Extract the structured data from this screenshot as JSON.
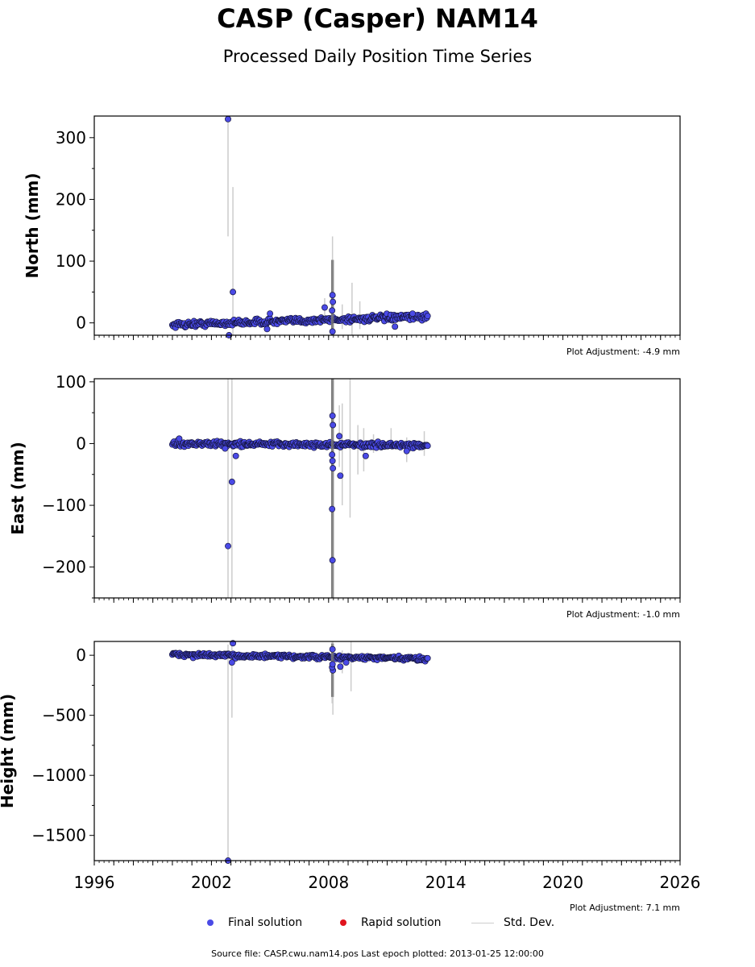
{
  "title": "CASP (Casper) NAM14",
  "subtitle": "Processed Daily Position Time Series",
  "source": "Source file: CASP.cwu.nam14.pos  Last epoch plotted: 2013-01-25 12:00:00",
  "colors": {
    "final": "#4a4ae6",
    "final_edge": "#14143c",
    "rapid": "#e0141e",
    "stddev": "#cccccc"
  },
  "legend": {
    "final": "Final solution",
    "rapid": "Rapid solution",
    "stddev": "Std. Dev."
  },
  "chart_data": [
    {
      "type": "scatter",
      "ylabel": "North (mm)",
      "adjustment": "Plot Adjustment: -4.9 mm",
      "xlim": [
        1996,
        2026
      ],
      "ylim": [
        -20,
        335
      ],
      "yticks": [
        0,
        100,
        200,
        300
      ],
      "xtick_labels": [],
      "trend": {
        "x": [
          2000.0,
          2013.07
        ],
        "y": [
          -3,
          10
        ],
        "noise": 3.5
      },
      "outliers": [
        {
          "x": 2002.85,
          "y": 330,
          "err": 190
        },
        {
          "x": 2002.9,
          "y": -20,
          "err": 0
        },
        {
          "x": 2003.1,
          "y": 50,
          "err": 170
        },
        {
          "x": 2007.8,
          "y": 25,
          "err": 15
        },
        {
          "x": 2008.2,
          "y": 45,
          "err": 95
        },
        {
          "x": 2008.22,
          "y": 34,
          "err": 50
        },
        {
          "x": 2008.18,
          "y": 20,
          "err": 40
        },
        {
          "x": 2008.2,
          "y": -14,
          "err": 30
        },
        {
          "x": 2004.85,
          "y": -10,
          "err": 0
        },
        {
          "x": 2005.0,
          "y": 15,
          "err": 0
        },
        {
          "x": 2011.4,
          "y": -6,
          "err": 0
        },
        {
          "x": 2012.3,
          "y": 15,
          "err": 0
        }
      ],
      "error_bars": [
        {
          "x": 2009.2,
          "lo": -20,
          "hi": 65
        },
        {
          "x": 2009.6,
          "lo": -10,
          "hi": 35
        },
        {
          "x": 2008.7,
          "lo": -10,
          "hi": 30
        }
      ]
    },
    {
      "type": "scatter",
      "ylabel": "East (mm)",
      "adjustment": "Plot Adjustment: -1.0 mm",
      "xlim": [
        1996,
        2026
      ],
      "ylim": [
        -250,
        105
      ],
      "yticks": [
        -200,
        -100,
        0,
        100
      ],
      "xtick_labels": [],
      "trend": {
        "x": [
          2000.0,
          2013.07
        ],
        "y": [
          0,
          -3
        ],
        "noise": 3
      },
      "outliers": [
        {
          "x": 2000.35,
          "y": 8,
          "err": 0
        },
        {
          "x": 2002.85,
          "y": -166,
          "err": 300
        },
        {
          "x": 2003.05,
          "y": -62,
          "err": 200
        },
        {
          "x": 2003.25,
          "y": -20,
          "err": 0
        },
        {
          "x": 2002.7,
          "y": -8,
          "err": 0
        },
        {
          "x": 2008.2,
          "y": 45,
          "err": 150
        },
        {
          "x": 2008.22,
          "y": 30,
          "err": 120
        },
        {
          "x": 2008.18,
          "y": -18,
          "err": 100
        },
        {
          "x": 2008.2,
          "y": -28,
          "err": 90
        },
        {
          "x": 2008.22,
          "y": -40,
          "err": 80
        },
        {
          "x": 2008.18,
          "y": -106,
          "err": 130
        },
        {
          "x": 2008.2,
          "y": -189,
          "err": 300
        },
        {
          "x": 2008.6,
          "y": -52,
          "err": 0
        },
        {
          "x": 2008.55,
          "y": 12,
          "err": 50
        },
        {
          "x": 2009.9,
          "y": -20,
          "err": 0
        },
        {
          "x": 2012.0,
          "y": -12,
          "err": 0
        }
      ],
      "error_bars": [
        {
          "x": 2008.7,
          "lo": -100,
          "hi": 65
        },
        {
          "x": 2009.1,
          "lo": -120,
          "hi": 105
        },
        {
          "x": 2009.5,
          "lo": -50,
          "hi": 30
        },
        {
          "x": 2009.8,
          "lo": -45,
          "hi": 25
        },
        {
          "x": 2010.3,
          "lo": -15,
          "hi": 15
        },
        {
          "x": 2011.2,
          "lo": -10,
          "hi": 25
        },
        {
          "x": 2012.0,
          "lo": -30,
          "hi": 10
        },
        {
          "x": 2012.9,
          "lo": -20,
          "hi": 20
        }
      ]
    },
    {
      "type": "scatter",
      "ylabel": "Height (mm)",
      "adjustment": "Plot Adjustment: 7.1 mm",
      "xlim": [
        1996,
        2026
      ],
      "ylim": [
        -1710,
        115
      ],
      "yticks": [
        -1500,
        -1000,
        -500,
        0
      ],
      "xtick_labels": [
        1996,
        2002,
        2008,
        2014,
        2020,
        2026
      ],
      "trend": {
        "x": [
          2000.0,
          2013.07
        ],
        "y": [
          5,
          -30
        ],
        "noise": 12
      },
      "outliers": [
        {
          "x": 2002.85,
          "y": -1710,
          "err": 1800
        },
        {
          "x": 2003.1,
          "y": 100,
          "err": 0
        },
        {
          "x": 2003.05,
          "y": -60,
          "err": 460
        },
        {
          "x": 2008.2,
          "y": 50,
          "err": 80
        },
        {
          "x": 2008.22,
          "y": -125,
          "err": 370
        },
        {
          "x": 2008.18,
          "y": -100,
          "err": 300
        },
        {
          "x": 2008.2,
          "y": -75,
          "err": 200
        },
        {
          "x": 2008.6,
          "y": -95,
          "err": 0
        },
        {
          "x": 2008.9,
          "y": -60,
          "err": 0
        }
      ],
      "error_bars": [
        {
          "x": 2009.15,
          "lo": -300,
          "hi": 115
        },
        {
          "x": 2008.7,
          "lo": -150,
          "hi": 40
        }
      ]
    }
  ]
}
